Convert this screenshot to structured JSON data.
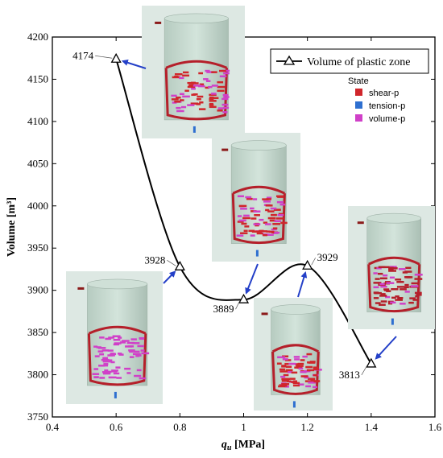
{
  "chart_data": {
    "type": "line",
    "x": [
      0.6,
      0.8,
      1.0,
      1.2,
      1.4
    ],
    "series": [
      {
        "name": "Volume of plastic zone",
        "values": [
          4174,
          3928,
          3889,
          3929,
          3813
        ]
      }
    ],
    "point_labels": [
      "4174",
      "3928",
      "3889",
      "3929",
      "3813"
    ],
    "xlabel_main": "q",
    "xlabel_sub": "u",
    "xlabel_unit": " [MPa]",
    "ylabel": "Volume [m³]",
    "xlim": [
      0.4,
      1.6
    ],
    "ylim": [
      3750,
      4200
    ],
    "xticks": [
      "0.4",
      "0.6",
      "0.8",
      "1",
      "1.2",
      "1.4",
      "1.6"
    ],
    "yticks": [
      "3750",
      "3800",
      "3850",
      "3900",
      "3950",
      "4000",
      "4050",
      "4100",
      "4150",
      "4200"
    ],
    "grid": false,
    "legend_position": "top-right",
    "state_legend": {
      "title": "State",
      "items": [
        {
          "label": "shear-p",
          "color": "#d0262b"
        },
        {
          "label": "tension-p",
          "color": "#2e6fd0"
        },
        {
          "label": "volume-p",
          "color": "#d040c8"
        }
      ]
    },
    "colors": {
      "line": "#000000",
      "arrow": "#2440c8",
      "model": "#c5d9cf",
      "model_bg": "#dde8e3"
    }
  }
}
